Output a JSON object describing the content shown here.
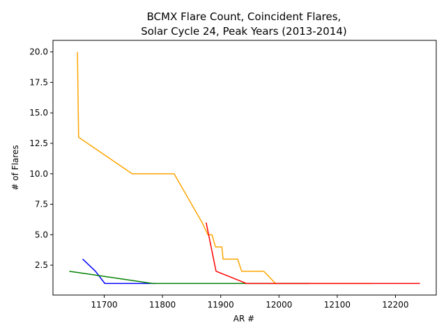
{
  "chart_data": {
    "type": "line",
    "title_line1": "BCMX Flare Count, Coincident Flares,",
    "title_line2": "Solar Cycle 24, Peak Years (2013-2014)",
    "xlabel": "AR #",
    "ylabel": "# of Flares",
    "xlim": [
      11612,
      12270
    ],
    "ylim": [
      0.05,
      20.95
    ],
    "x_ticks": [
      11700,
      11800,
      11900,
      12000,
      12100,
      12200
    ],
    "y_ticks": [
      2.5,
      5.0,
      7.5,
      10.0,
      12.5,
      15.0,
      17.5,
      20.0
    ],
    "x_tick_labels": [
      "11700",
      "11800",
      "11900",
      "12000",
      "12100",
      "12200"
    ],
    "y_tick_labels": [
      "2.5",
      "5.0",
      "7.5",
      "10.0",
      "12.5",
      "15.0",
      "17.5",
      "20.0"
    ],
    "grid": false,
    "series": [
      {
        "color": "#ffa500",
        "x": [
          11654,
          11656,
          11748,
          11820,
          11868,
          11878,
          11885,
          11891,
          11902,
          11904,
          11929,
          11936,
          11974,
          11994,
          12003,
          12043,
          12146,
          12160
        ],
        "y": [
          20,
          13,
          10,
          10,
          6,
          5,
          5,
          4,
          4,
          3,
          3,
          2,
          2,
          1,
          1,
          1,
          1,
          1
        ]
      },
      {
        "color": "#0000ff",
        "x": [
          11663,
          11685,
          11701,
          11788
        ],
        "y": [
          3,
          2,
          1,
          1
        ]
      },
      {
        "color": "#008000",
        "x": [
          11640,
          11783,
          11860,
          11944,
          12002,
          12052
        ],
        "y": [
          2,
          1,
          1,
          1,
          1,
          1
        ]
      },
      {
        "color": "#ff0000",
        "x": [
          11875,
          11892,
          11944,
          12000,
          12100,
          12242
        ],
        "y": [
          6,
          2,
          1,
          1,
          1,
          1
        ]
      }
    ]
  }
}
